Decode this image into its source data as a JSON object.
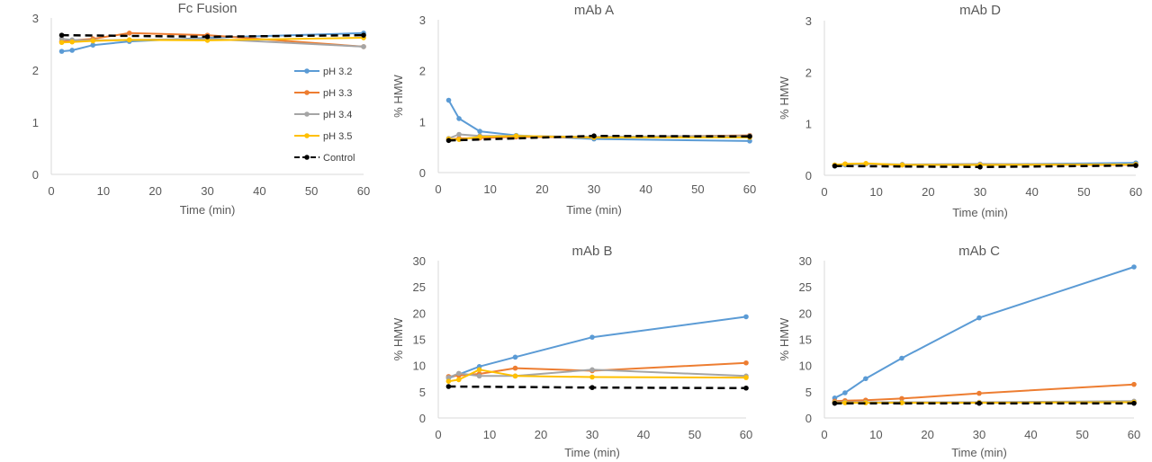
{
  "series_styles": [
    {
      "name": "pH 3.2",
      "color": "#5B9BD5",
      "dash": false
    },
    {
      "name": "pH 3.3",
      "color": "#ED7D31",
      "dash": false
    },
    {
      "name": "pH 3.4",
      "color": "#A5A5A5",
      "dash": false
    },
    {
      "name": "pH 3.5",
      "color": "#FFC000",
      "dash": false
    },
    {
      "name": "Control",
      "color": "#000000",
      "dash": true
    }
  ],
  "chart_data": [
    {
      "type": "line",
      "title": "Fc Fusion",
      "xlabel": "Time (min)",
      "ylabel": "",
      "xlim": [
        0,
        60
      ],
      "ylim": [
        0,
        3
      ],
      "xticks": [
        0,
        10,
        20,
        30,
        40,
        50,
        60
      ],
      "yticks": [
        0,
        1,
        2,
        3
      ],
      "legend": "right",
      "series": [
        {
          "name": "pH 3.2",
          "x": [
            2,
            4,
            8,
            15,
            30,
            60
          ],
          "y": [
            2.36,
            2.38,
            2.48,
            2.55,
            2.62,
            2.71
          ]
        },
        {
          "name": "pH 3.3",
          "x": [
            2,
            4,
            8,
            15,
            30,
            60
          ],
          "y": [
            2.55,
            2.57,
            2.6,
            2.71,
            2.67,
            2.45
          ]
        },
        {
          "name": "pH 3.4",
          "x": [
            2,
            4,
            8,
            15,
            30,
            60
          ],
          "y": [
            2.6,
            2.58,
            2.57,
            2.58,
            2.6,
            2.45
          ]
        },
        {
          "name": "pH 3.5",
          "x": [
            2,
            4,
            8,
            15,
            30,
            60
          ],
          "y": [
            2.53,
            2.54,
            2.56,
            2.58,
            2.57,
            2.62
          ]
        },
        {
          "name": "Control",
          "x": [
            2,
            30,
            60
          ],
          "y": [
            2.67,
            2.64,
            2.67
          ]
        }
      ]
    },
    {
      "type": "line",
      "title": "mAb A",
      "xlabel": "Time (min)",
      "ylabel": "% HMW",
      "xlim": [
        0,
        60
      ],
      "ylim": [
        0,
        3
      ],
      "xticks": [
        0,
        10,
        20,
        30,
        40,
        50,
        60
      ],
      "yticks": [
        0,
        1,
        2,
        3
      ],
      "series": [
        {
          "name": "pH 3.2",
          "x": [
            2,
            4,
            8,
            15,
            30,
            60
          ],
          "y": [
            1.42,
            1.06,
            0.81,
            0.73,
            0.66,
            0.62
          ]
        },
        {
          "name": "pH 3.3",
          "x": [
            2,
            4,
            8,
            15,
            30,
            60
          ],
          "y": [
            0.65,
            0.67,
            0.68,
            0.7,
            0.69,
            0.73
          ]
        },
        {
          "name": "pH 3.4",
          "x": [
            2,
            4,
            8,
            15,
            30,
            60
          ],
          "y": [
            0.67,
            0.75,
            0.72,
            0.72,
            0.7,
            0.72
          ]
        },
        {
          "name": "pH 3.5",
          "x": [
            2,
            4,
            8,
            15,
            30,
            60
          ],
          "y": [
            0.66,
            0.65,
            0.7,
            0.72,
            0.69,
            0.69
          ]
        },
        {
          "name": "Control",
          "x": [
            2,
            30,
            60
          ],
          "y": [
            0.63,
            0.72,
            0.71
          ]
        }
      ]
    },
    {
      "type": "line",
      "title": "mAb D",
      "xlabel": "Time (min)",
      "ylabel": "% HMW",
      "xlim": [
        0,
        60
      ],
      "ylim": [
        0,
        3
      ],
      "xticks": [
        0,
        10,
        20,
        30,
        40,
        50,
        60
      ],
      "yticks": [
        0,
        1,
        2,
        3
      ],
      "series": [
        {
          "name": "pH 3.2",
          "x": [
            2,
            4,
            8,
            15,
            30,
            60
          ],
          "y": [
            0.18,
            0.2,
            0.22,
            0.21,
            0.21,
            0.24
          ]
        },
        {
          "name": "pH 3.3",
          "x": [
            2,
            4,
            8,
            15,
            30,
            60
          ],
          "y": [
            0.19,
            0.22,
            0.22,
            0.2,
            0.21,
            0.2
          ]
        },
        {
          "name": "pH 3.4",
          "x": [
            2,
            4,
            8,
            15,
            30,
            60
          ],
          "y": [
            0.2,
            0.21,
            0.22,
            0.21,
            0.22,
            0.21
          ]
        },
        {
          "name": "pH 3.5",
          "x": [
            2,
            4,
            8,
            15,
            30,
            60
          ],
          "y": [
            0.2,
            0.22,
            0.23,
            0.2,
            0.2,
            0.21
          ]
        },
        {
          "name": "Control",
          "x": [
            2,
            30,
            60
          ],
          "y": [
            0.18,
            0.16,
            0.19
          ]
        }
      ]
    },
    {
      "type": "line",
      "title": "mAb B",
      "xlabel": "Time (min)",
      "ylabel": "% HMW",
      "xlim": [
        0,
        60
      ],
      "ylim": [
        0,
        30
      ],
      "xticks": [
        0,
        10,
        20,
        30,
        40,
        50,
        60
      ],
      "yticks": [
        0,
        5,
        10,
        15,
        20,
        25,
        30
      ],
      "series": [
        {
          "name": "pH 3.2",
          "x": [
            2,
            4,
            8,
            15,
            30,
            60
          ],
          "y": [
            7.6,
            8.3,
            9.8,
            11.6,
            15.4,
            19.3
          ]
        },
        {
          "name": "pH 3.3",
          "x": [
            2,
            4,
            8,
            15,
            30,
            60
          ],
          "y": [
            7.9,
            8.1,
            8.4,
            9.5,
            9.0,
            10.5
          ]
        },
        {
          "name": "pH 3.4",
          "x": [
            2,
            4,
            8,
            15,
            30,
            60
          ],
          "y": [
            7.7,
            8.5,
            8.0,
            8.0,
            9.2,
            8.0
          ]
        },
        {
          "name": "pH 3.5",
          "x": [
            2,
            4,
            8,
            15,
            30,
            60
          ],
          "y": [
            7.0,
            7.3,
            9.2,
            8.0,
            7.8,
            7.7
          ]
        },
        {
          "name": "Control",
          "x": [
            2,
            30,
            60
          ],
          "y": [
            6.0,
            5.8,
            5.7
          ]
        }
      ]
    },
    {
      "type": "line",
      "title": "mAb C",
      "xlabel": "Time (min)",
      "ylabel": "% HMW",
      "xlim": [
        0,
        60
      ],
      "ylim": [
        0,
        30
      ],
      "xticks": [
        0,
        10,
        20,
        30,
        40,
        50,
        60
      ],
      "yticks": [
        0,
        5,
        10,
        15,
        20,
        25,
        30
      ],
      "series": [
        {
          "name": "pH 3.2",
          "x": [
            2,
            4,
            8,
            15,
            30,
            60
          ],
          "y": [
            3.8,
            4.8,
            7.5,
            11.4,
            19.1,
            28.8
          ]
        },
        {
          "name": "pH 3.3",
          "x": [
            2,
            4,
            8,
            15,
            30,
            60
          ],
          "y": [
            3.2,
            3.3,
            3.4,
            3.7,
            4.7,
            6.4
          ]
        },
        {
          "name": "pH 3.4",
          "x": [
            2,
            4,
            8,
            15,
            30,
            60
          ],
          "y": [
            3.0,
            3.0,
            3.0,
            3.0,
            3.0,
            3.2
          ]
        },
        {
          "name": "pH 3.5",
          "x": [
            2,
            4,
            8,
            15,
            30,
            60
          ],
          "y": [
            2.9,
            2.9,
            2.9,
            2.9,
            2.9,
            3.0
          ]
        },
        {
          "name": "Control",
          "x": [
            2,
            30,
            60
          ],
          "y": [
            2.8,
            2.8,
            2.8
          ]
        }
      ]
    }
  ]
}
